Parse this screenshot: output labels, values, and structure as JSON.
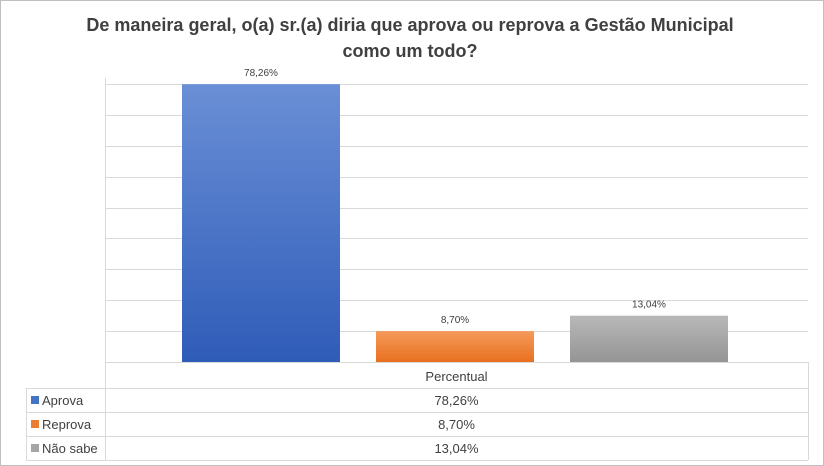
{
  "chart_data": {
    "type": "bar",
    "title": "De maneira geral, o(a) sr.(a) diria que aprova ou reprova a Gestão Municipal como um todo?",
    "category_label": "Percentual",
    "ylim": [
      0,
      80
    ],
    "grid": true,
    "legend": "data-table-bottom",
    "series": [
      {
        "name": "Aprova",
        "value": 78.26,
        "label": "78,26%",
        "color": "#4472c4"
      },
      {
        "name": "Reprova",
        "value": 8.7,
        "label": "8,70%",
        "color": "#ed7d31"
      },
      {
        "name": "Não sabe",
        "value": 13.04,
        "label": "13,04%",
        "color": "#a5a5a5"
      }
    ]
  }
}
